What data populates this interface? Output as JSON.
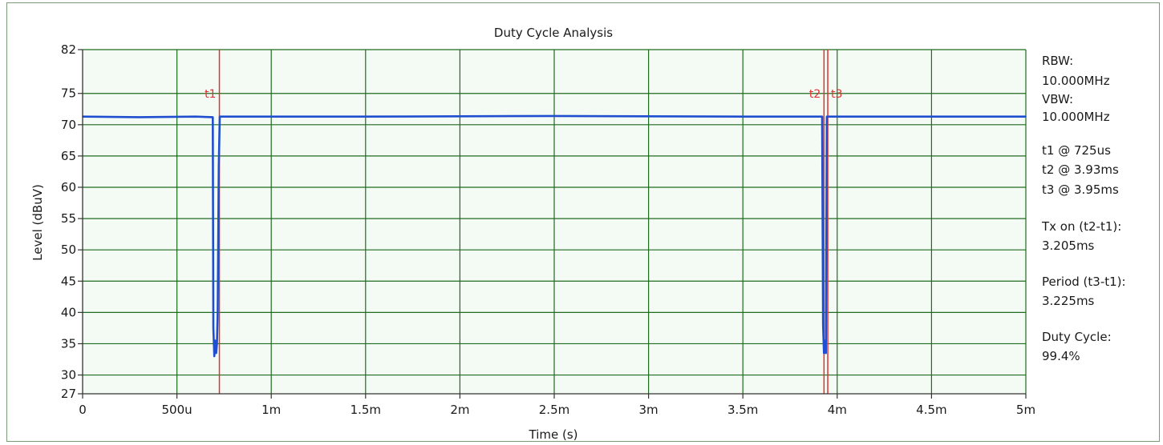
{
  "chart_data": {
    "type": "line",
    "title": "Duty Cycle Analysis",
    "xlabel": "Time (s)",
    "ylabel": "Level (dBuV)",
    "xlim": [
      0,
      0.005
    ],
    "ylim": [
      27,
      82
    ],
    "grid": true,
    "x_ticks": [
      {
        "value": 0,
        "label": "0"
      },
      {
        "value": 0.0005,
        "label": "500u"
      },
      {
        "value": 0.001,
        "label": "1m"
      },
      {
        "value": 0.0015,
        "label": "1.5m"
      },
      {
        "value": 0.002,
        "label": "2m"
      },
      {
        "value": 0.0025,
        "label": "2.5m"
      },
      {
        "value": 0.003,
        "label": "3m"
      },
      {
        "value": 0.0035,
        "label": "3.5m"
      },
      {
        "value": 0.004,
        "label": "4m"
      },
      {
        "value": 0.0045,
        "label": "4.5m"
      },
      {
        "value": 0.005,
        "label": "5m"
      }
    ],
    "y_ticks": [
      {
        "value": 82,
        "label": "82"
      },
      {
        "value": 75,
        "label": "75"
      },
      {
        "value": 70,
        "label": "70"
      },
      {
        "value": 65,
        "label": "65"
      },
      {
        "value": 60,
        "label": "60"
      },
      {
        "value": 55,
        "label": "55"
      },
      {
        "value": 50,
        "label": "50"
      },
      {
        "value": 45,
        "label": "45"
      },
      {
        "value": 40,
        "label": "40"
      },
      {
        "value": 35,
        "label": "35"
      },
      {
        "value": 30,
        "label": "30"
      },
      {
        "value": 27,
        "label": "27"
      }
    ],
    "series": [
      {
        "color": "#1f4fd0",
        "x": [
          0,
          0.0003,
          0.0006,
          0.00069,
          0.000693,
          0.000698,
          0.000703,
          0.000708,
          0.000712,
          0.000716,
          0.000722,
          0.000727,
          0.0015,
          0.0025,
          0.0035,
          0.00392,
          0.003925,
          0.00393,
          0.003935,
          0.00394,
          0.003945,
          0.0045,
          0.005
        ],
        "y": [
          71.3,
          71.2,
          71.3,
          71.2,
          37.5,
          33.0,
          35.5,
          33.5,
          35.0,
          40.0,
          63.5,
          71.3,
          71.3,
          71.4,
          71.3,
          71.3,
          38.0,
          33.5,
          35.5,
          33.5,
          71.3,
          71.3,
          71.3
        ]
      }
    ],
    "markers": [
      {
        "label": "t1",
        "x": 0.000725,
        "color": "#e53030"
      },
      {
        "label": "t2",
        "x": 0.00393,
        "color": "#e53030"
      },
      {
        "label": "t3",
        "x": 0.00395,
        "color": "#e53030"
      }
    ],
    "colors": {
      "plot_bg": "#f4fbf4",
      "grid": "#1f6b1f",
      "axis": "#333333",
      "trace": "#1f4fd0",
      "marker": "#e53030"
    }
  },
  "info": {
    "rbw_label": "RBW:",
    "rbw_value": "10.000MHz",
    "vbw_label": "VBW:",
    "vbw_value": "10.000MHz",
    "t1": "t1 @ 725us",
    "t2": "t2 @ 3.93ms",
    "t3": "t3 @ 3.95ms",
    "tx_on_label": "Tx on (t2-t1):",
    "tx_on_value": "3.205ms",
    "period_label": "Period (t3-t1):",
    "period_value": "3.225ms",
    "duty_label": "Duty Cycle:",
    "duty_value": "99.4%"
  }
}
